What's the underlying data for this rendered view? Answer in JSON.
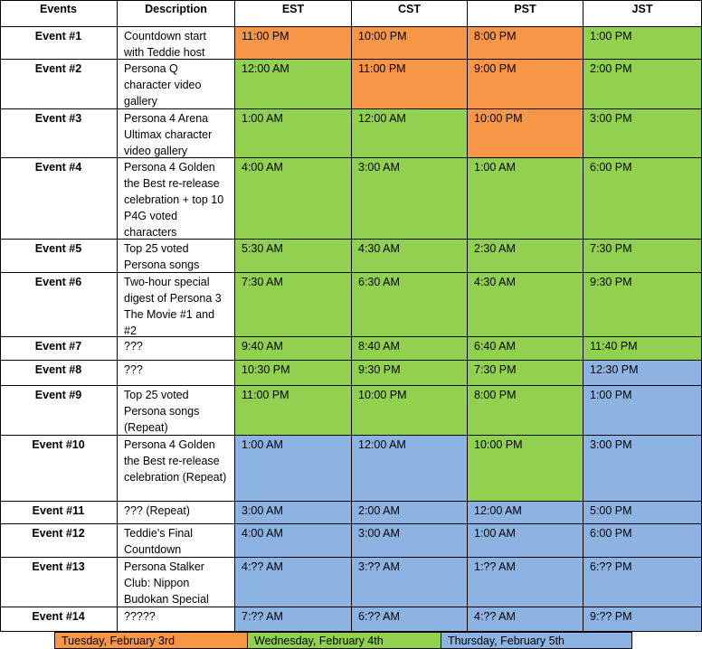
{
  "header": [
    "Events",
    "Description",
    "EST",
    "CST",
    "PST",
    "JST"
  ],
  "rows": [
    {
      "event": "Event #1",
      "description": "Countdown start with Teddie host",
      "times": [
        "11:00 PM",
        "10:00 PM",
        "8:00 PM",
        "1:00 PM"
      ],
      "colors": [
        "#f79646",
        "#f79646",
        "#f79646",
        "#92d050"
      ]
    },
    {
      "event": "Event #2",
      "description": "Persona Q character video gallery",
      "times": [
        "12:00 AM",
        "11:00 PM",
        "9:00 PM",
        "2:00 PM"
      ],
      "colors": [
        "#92d050",
        "#f79646",
        "#f79646",
        "#92d050"
      ]
    },
    {
      "event": "Event #3",
      "description": "Persona 4 Arena Ultimax character video gallery",
      "times": [
        "1:00 AM",
        "12:00 AM",
        "10:00 PM",
        "3:00 PM"
      ],
      "colors": [
        "#92d050",
        "#92d050",
        "#f79646",
        "#92d050"
      ]
    },
    {
      "event": "Event #4",
      "description": "Persona 4 Golden the Best re-release celebration + top 10 P4G voted characters",
      "times": [
        "4:00 AM",
        "3:00 AM",
        "1:00 AM",
        "6:00 PM"
      ],
      "colors": [
        "#92d050",
        "#92d050",
        "#92d050",
        "#92d050"
      ]
    },
    {
      "event": "Event #5",
      "description": "Top 25 voted Persona songs",
      "times": [
        "5:30 AM",
        "4:30 AM",
        "2:30 AM",
        "7:30 PM"
      ],
      "colors": [
        "#92d050",
        "#92d050",
        "#92d050",
        "#92d050"
      ]
    },
    {
      "event": "Event #6",
      "description": "Two-hour special digest of Persona 3 The Movie #1 and #2",
      "times": [
        "7:30 AM",
        "6:30 AM",
        "4:30 AM",
        "9:30 PM"
      ],
      "colors": [
        "#92d050",
        "#92d050",
        "#92d050",
        "#92d050"
      ]
    },
    {
      "event": "Event #7",
      "description": "???",
      "times": [
        "9:40 AM",
        "8:40 AM",
        "6:40 AM",
        "11:40 PM"
      ],
      "colors": [
        "#92d050",
        "#92d050",
        "#92d050",
        "#92d050"
      ]
    },
    {
      "event": "Event #8",
      "description": "???",
      "times": [
        "10:30 PM",
        "9:30 PM",
        "7:30 PM",
        "12:30 PM"
      ],
      "colors": [
        "#92d050",
        "#92d050",
        "#92d050",
        "#8db3e2"
      ]
    },
    {
      "event": "Event #9",
      "description": "Top 25 voted Persona songs (Repeat)",
      "times": [
        "11:00 PM",
        "10:00 PM",
        "8:00 PM",
        "1:00 PM"
      ],
      "colors": [
        "#92d050",
        "#92d050",
        "#92d050",
        "#8db3e2"
      ]
    },
    {
      "event": "Event #10",
      "description": "Persona 4 Golden the Best re-release celebration (Repeat)",
      "times": [
        "1:00 AM",
        "12:00 AM",
        "10:00 PM",
        "3:00 PM"
      ],
      "colors": [
        "#8db3e2",
        "#8db3e2",
        "#92d050",
        "#8db3e2"
      ]
    },
    {
      "event": "Event #11",
      "description": "??? (Repeat)",
      "times": [
        "3:00 AM",
        "2:00 AM",
        "12:00 AM",
        "5:00 PM"
      ],
      "colors": [
        "#8db3e2",
        "#8db3e2",
        "#8db3e2",
        "#8db3e2"
      ]
    },
    {
      "event": "Event #12",
      "description": "Teddie's Final Countdown",
      "times": [
        "4:00 AM",
        "3:00 AM",
        "1:00 AM",
        "6:00 PM"
      ],
      "colors": [
        "#8db3e2",
        "#8db3e2",
        "#8db3e2",
        "#8db3e2"
      ]
    },
    {
      "event": "Event #13",
      "description": "Persona Stalker Club: Nippon Budokan Special",
      "times": [
        "4:?? AM",
        "3:?? AM",
        "1:?? AM",
        "6:?? PM"
      ],
      "colors": [
        "#8db3e2",
        "#8db3e2",
        "#8db3e2",
        "#8db3e2"
      ]
    },
    {
      "event": "Event #14",
      "description": "?????",
      "times": [
        "7:?? AM",
        "6:?? AM",
        "4:?? AM",
        "9:?? PM"
      ],
      "colors": [
        "#8db3e2",
        "#8db3e2",
        "#8db3e2",
        "#8db3e2"
      ]
    }
  ],
  "legend": [
    {
      "label": "Tuesday, February 3rd",
      "color": "#f79646"
    },
    {
      "label": "Wednesday, February 4th",
      "color": "#92d050"
    },
    {
      "label": "Thursday, February 5th",
      "color": "#8db3e2"
    }
  ]
}
